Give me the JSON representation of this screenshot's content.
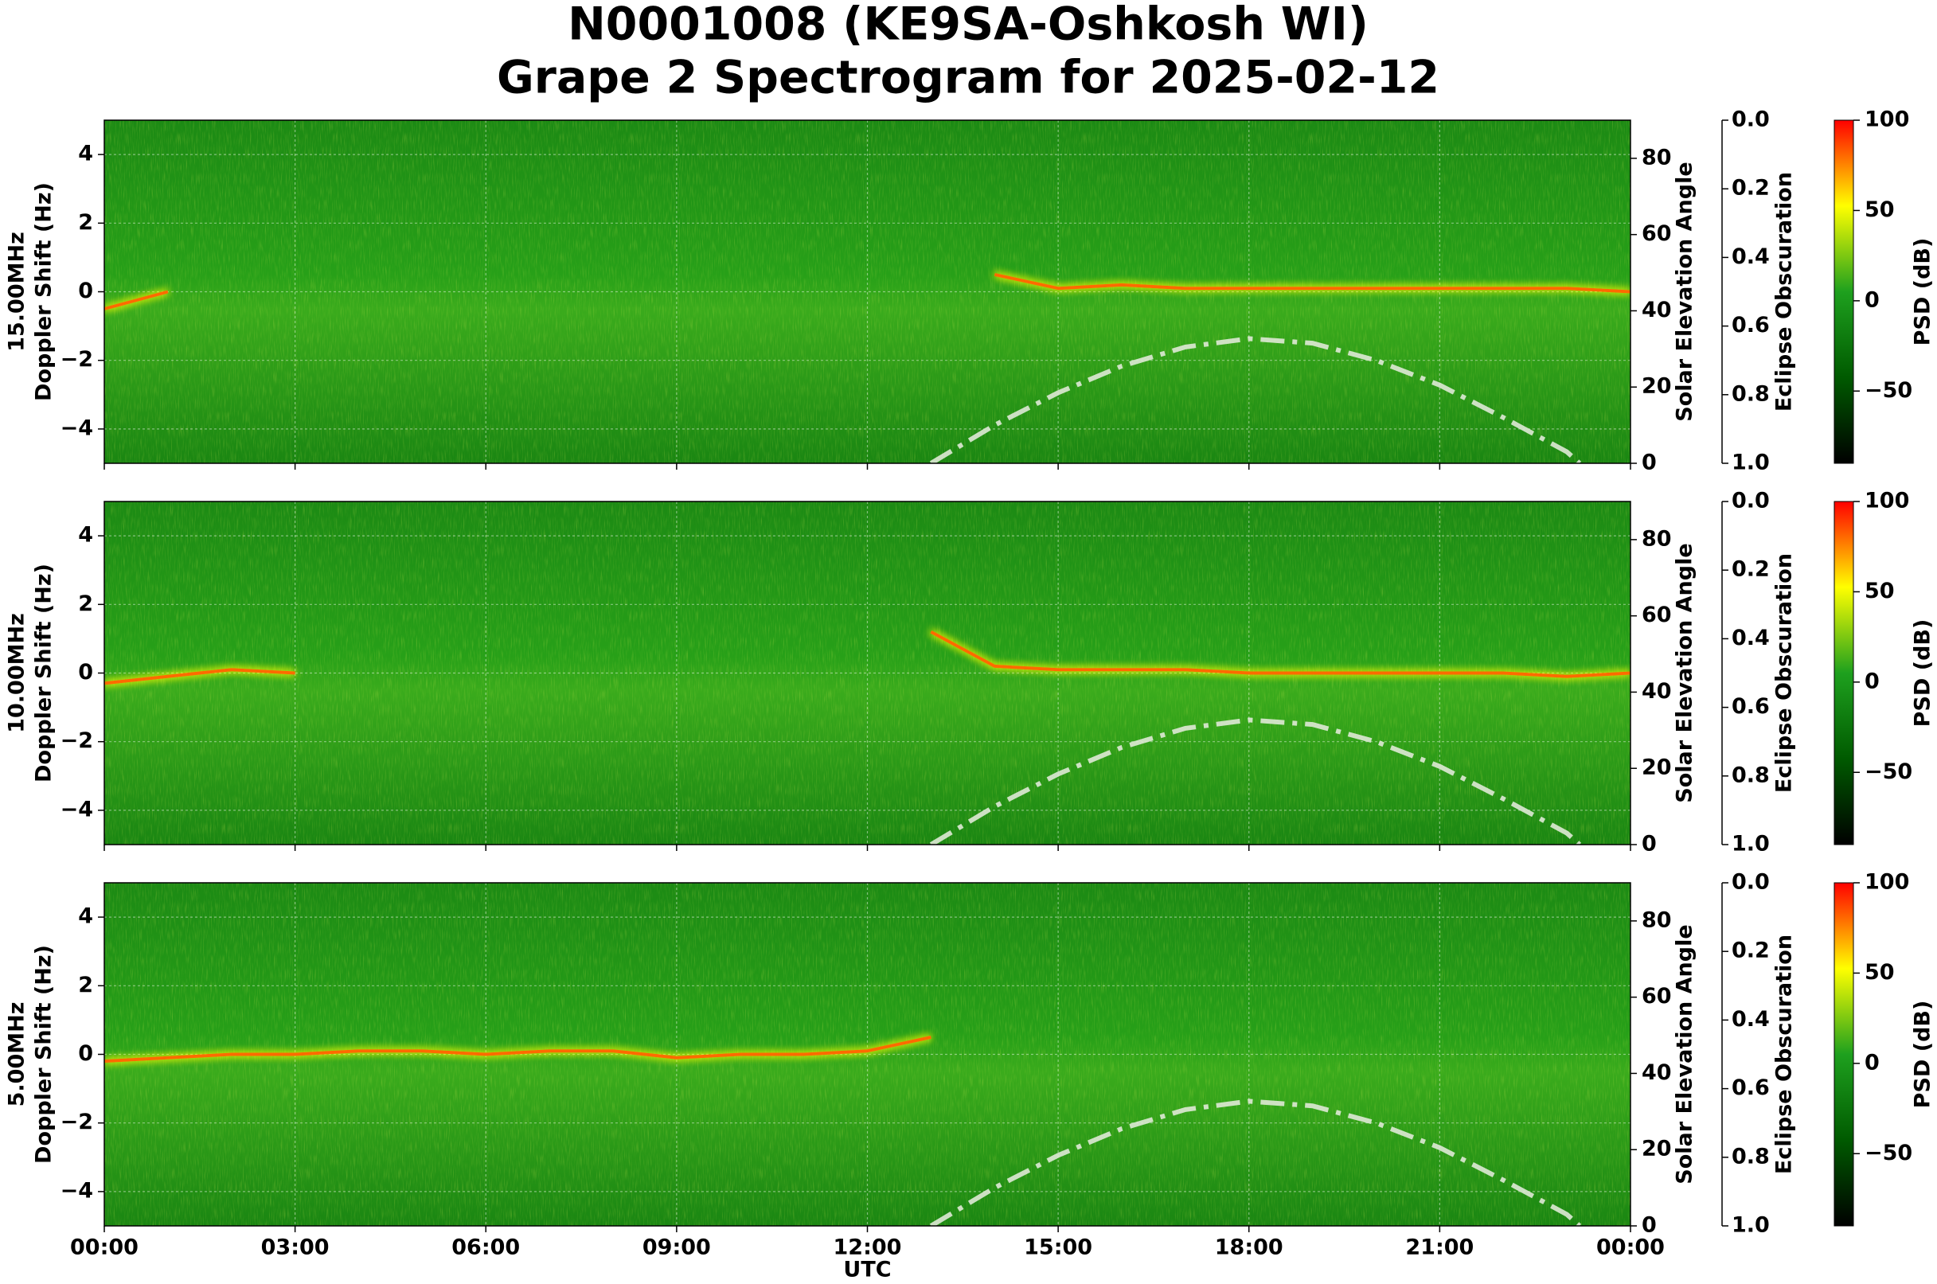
{
  "title": [
    "N0001008 (KE9SA-Oshkosh WI)",
    "Grape 2 Spectrogram for 2025-02-12"
  ],
  "x_axis": {
    "label": "UTC",
    "xlim": [
      0,
      24
    ],
    "xticks": [
      {
        "value": 0,
        "label": "00:00"
      },
      {
        "value": 3,
        "label": "03:00"
      },
      {
        "value": 6,
        "label": "06:00"
      },
      {
        "value": 9,
        "label": "09:00"
      },
      {
        "value": 12,
        "label": "12:00"
      },
      {
        "value": 15,
        "label": "15:00"
      },
      {
        "value": 18,
        "label": "18:00"
      },
      {
        "value": 21,
        "label": "21:00"
      },
      {
        "value": 24,
        "label": "00:00"
      }
    ]
  },
  "chart_data": [
    {
      "type": "spectrogram",
      "freq_label": "15.00MHz",
      "ylabel": "Doppler Shift (Hz)",
      "ylim": [
        -5,
        5
      ],
      "yticks": [
        {
          "value": -4,
          "label": "−4"
        },
        {
          "value": -2,
          "label": "−2"
        },
        0,
        2,
        4
      ],
      "grid": true,
      "y2label": "Solar Elevation Angle",
      "y2lim": [
        0,
        90
      ],
      "y2ticks": [
        0,
        20,
        40,
        60,
        80
      ],
      "y3label": "Eclipse Obscuration",
      "y3lim": [
        0,
        1
      ],
      "y3_inverted": true,
      "y3ticks": [
        {
          "value": 0,
          "label": "0.0"
        },
        0.2,
        0.4,
        0.6,
        0.8,
        {
          "value": 1,
          "label": "1.0"
        }
      ],
      "colorbar": {
        "label": "PSD (dB)",
        "lim": [
          -90,
          100
        ],
        "ticks": [
          {
            "value": -50,
            "label": "−50"
          },
          0,
          50,
          100
        ],
        "colors": [
          "#000000",
          "#005a00",
          "#1ea01e",
          "#ffff00",
          "#ff0000"
        ]
      },
      "doppler": {
        "color": "#ff6a00",
        "x": [
          0,
          1,
          2,
          3,
          4,
          5,
          6,
          7,
          8,
          9,
          10,
          11,
          12,
          13,
          14,
          15,
          16,
          17,
          18,
          19,
          20,
          21,
          22,
          23,
          24
        ],
        "values": [
          -0.5,
          0,
          null,
          null,
          null,
          null,
          null,
          null,
          null,
          null,
          null,
          null,
          null,
          null,
          0.5,
          0.1,
          0.2,
          0.1,
          0.1,
          0.1,
          0.1,
          0.1,
          0.1,
          0.1,
          0
        ]
      },
      "solar_elevation": {
        "color": "#dfe9d6",
        "axis": "y2",
        "x": [
          13,
          14,
          15,
          16,
          17,
          18,
          19,
          20,
          21,
          22,
          23,
          23.2
        ],
        "values": [
          0,
          10,
          18.5,
          25.5,
          30.5,
          32.7,
          31.5,
          27,
          20.5,
          12,
          3,
          0
        ]
      }
    },
    {
      "type": "spectrogram",
      "freq_label": "10.00MHz",
      "ylabel": "Doppler Shift (Hz)",
      "ylim": [
        -5,
        5
      ],
      "yticks": [
        {
          "value": -4,
          "label": "−4"
        },
        {
          "value": -2,
          "label": "−2"
        },
        0,
        2,
        4
      ],
      "grid": true,
      "y2label": "Solar Elevation Angle",
      "y2lim": [
        0,
        90
      ],
      "y2ticks": [
        0,
        20,
        40,
        60,
        80
      ],
      "y3label": "Eclipse Obscuration",
      "y3lim": [
        0,
        1
      ],
      "y3_inverted": true,
      "y3ticks": [
        {
          "value": 0,
          "label": "0.0"
        },
        0.2,
        0.4,
        0.6,
        0.8,
        {
          "value": 1,
          "label": "1.0"
        }
      ],
      "colorbar": {
        "label": "PSD (dB)",
        "lim": [
          -90,
          100
        ],
        "ticks": [
          {
            "value": -50,
            "label": "−50"
          },
          0,
          50,
          100
        ],
        "colors": [
          "#000000",
          "#005a00",
          "#1ea01e",
          "#ffff00",
          "#ff0000"
        ]
      },
      "doppler": {
        "color": "#ff6a00",
        "x": [
          0,
          1,
          2,
          3,
          4,
          5,
          6,
          7,
          8,
          9,
          10,
          11,
          12,
          13,
          14,
          15,
          16,
          17,
          18,
          19,
          20,
          21,
          22,
          23,
          24
        ],
        "values": [
          -0.3,
          -0.1,
          0.1,
          0,
          null,
          null,
          null,
          null,
          null,
          null,
          null,
          null,
          null,
          1.2,
          0.2,
          0.1,
          0.1,
          0.1,
          0,
          0,
          0,
          0,
          0,
          -0.1,
          0
        ]
      },
      "solar_elevation": {
        "color": "#dfe9d6",
        "axis": "y2",
        "x": [
          13,
          14,
          15,
          16,
          17,
          18,
          19,
          20,
          21,
          22,
          23,
          23.2
        ],
        "values": [
          0,
          10,
          18.5,
          25.5,
          30.5,
          32.7,
          31.5,
          27,
          20.5,
          12,
          3,
          0
        ]
      }
    },
    {
      "type": "spectrogram",
      "freq_label": "5.00MHz",
      "ylabel": "Doppler Shift (Hz)",
      "ylim": [
        -5,
        5
      ],
      "yticks": [
        {
          "value": -4,
          "label": "−4"
        },
        {
          "value": -2,
          "label": "−2"
        },
        0,
        2,
        4
      ],
      "grid": true,
      "y2label": "Solar Elevation Angle",
      "y2lim": [
        0,
        90
      ],
      "y2ticks": [
        0,
        20,
        40,
        60,
        80
      ],
      "y3label": "Eclipse Obscuration",
      "y3lim": [
        0,
        1
      ],
      "y3_inverted": true,
      "y3ticks": [
        {
          "value": 0,
          "label": "0.0"
        },
        0.2,
        0.4,
        0.6,
        0.8,
        {
          "value": 1,
          "label": "1.0"
        }
      ],
      "colorbar": {
        "label": "PSD (dB)",
        "lim": [
          -90,
          100
        ],
        "ticks": [
          {
            "value": -50,
            "label": "−50"
          },
          0,
          50,
          100
        ],
        "colors": [
          "#000000",
          "#005a00",
          "#1ea01e",
          "#ffff00",
          "#ff0000"
        ]
      },
      "doppler": {
        "color": "#ff6a00",
        "x": [
          0,
          1,
          2,
          3,
          4,
          5,
          6,
          7,
          8,
          9,
          10,
          11,
          12,
          13,
          14,
          15,
          16,
          17,
          18,
          19,
          20,
          21,
          22,
          23,
          24
        ],
        "values": [
          -0.2,
          -0.1,
          0,
          0,
          0.1,
          0.1,
          0,
          0.1,
          0.1,
          -0.1,
          0,
          0,
          0.1,
          0.5,
          null,
          null,
          null,
          null,
          null,
          null,
          null,
          null,
          null,
          null,
          null
        ]
      },
      "solar_elevation": {
        "color": "#dfe9d6",
        "axis": "y2",
        "x": [
          13,
          14,
          15,
          16,
          17,
          18,
          19,
          20,
          21,
          22,
          23,
          23.2
        ],
        "values": [
          0,
          10,
          18.5,
          25.5,
          30.5,
          32.7,
          31.5,
          27,
          20.5,
          12,
          3,
          0
        ]
      }
    }
  ]
}
